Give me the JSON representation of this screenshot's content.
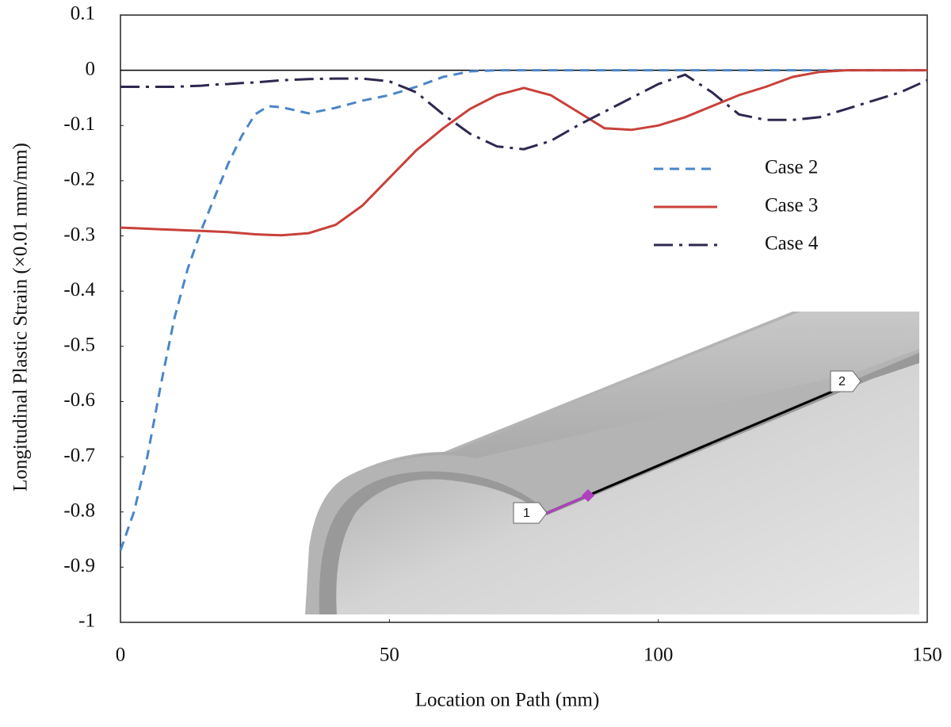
{
  "chart_data": {
    "type": "line",
    "x_label": "Location on Path (mm)",
    "y_label": "Longitudinal Plastic Strain (×0.01 mm/mm)",
    "x": [
      0,
      2.5,
      5,
      7.5,
      10,
      12.5,
      15,
      17.5,
      20,
      22.5,
      25,
      27.5,
      30,
      35,
      40,
      45,
      50,
      55,
      60,
      65,
      70,
      75,
      80,
      85,
      90,
      95,
      100,
      105,
      110,
      115,
      120,
      125,
      130,
      135,
      140,
      145,
      150
    ],
    "series": [
      {
        "name": "Case 2",
        "color": "#4a86c8",
        "linestyle": "dashed",
        "values": [
          -0.87,
          -0.8,
          -0.7,
          -0.57,
          -0.45,
          -0.36,
          -0.29,
          -0.23,
          -0.17,
          -0.12,
          -0.08,
          -0.065,
          -0.067,
          -0.078,
          -0.068,
          -0.055,
          -0.045,
          -0.03,
          -0.012,
          -0.002,
          0,
          0,
          0,
          0,
          0,
          0,
          0,
          0,
          0,
          0,
          0,
          0,
          0,
          0,
          0,
          0,
          0
        ]
      },
      {
        "name": "Case 3",
        "color": "#c8413a",
        "linestyle": "solid",
        "values": [
          -0.285,
          -0.286,
          -0.287,
          -0.288,
          -0.289,
          -0.29,
          -0.291,
          -0.292,
          -0.293,
          -0.295,
          -0.297,
          -0.298,
          -0.299,
          -0.295,
          -0.28,
          -0.245,
          -0.195,
          -0.145,
          -0.105,
          -0.07,
          -0.045,
          -0.032,
          -0.045,
          -0.075,
          -0.105,
          -0.108,
          -0.1,
          -0.085,
          -0.065,
          -0.045,
          -0.03,
          -0.012,
          -0.003,
          0,
          0,
          0,
          0
        ]
      },
      {
        "name": "Case 4",
        "color": "#2e2850",
        "linestyle": "dashdot",
        "values": [
          -0.03,
          -0.03,
          -0.03,
          -0.03,
          -0.03,
          -0.029,
          -0.028,
          -0.026,
          -0.025,
          -0.023,
          -0.022,
          -0.02,
          -0.018,
          -0.016,
          -0.015,
          -0.015,
          -0.02,
          -0.04,
          -0.08,
          -0.115,
          -0.138,
          -0.143,
          -0.128,
          -0.1,
          -0.075,
          -0.05,
          -0.025,
          -0.008,
          -0.04,
          -0.08,
          -0.09,
          -0.09,
          -0.085,
          -0.07,
          -0.055,
          -0.04,
          -0.018
        ]
      }
    ],
    "xlim": [
      0,
      150
    ],
    "xticks": [
      0,
      50,
      100,
      150
    ],
    "ylim": [
      -1,
      0.1
    ],
    "yticks": [
      0.1,
      0,
      -0.1,
      -0.2,
      -0.3,
      -0.4,
      -0.5,
      -0.6,
      -0.7,
      -0.8,
      -0.9,
      -1
    ],
    "legend": "upper-right",
    "annotations": [
      "1",
      "2"
    ]
  }
}
